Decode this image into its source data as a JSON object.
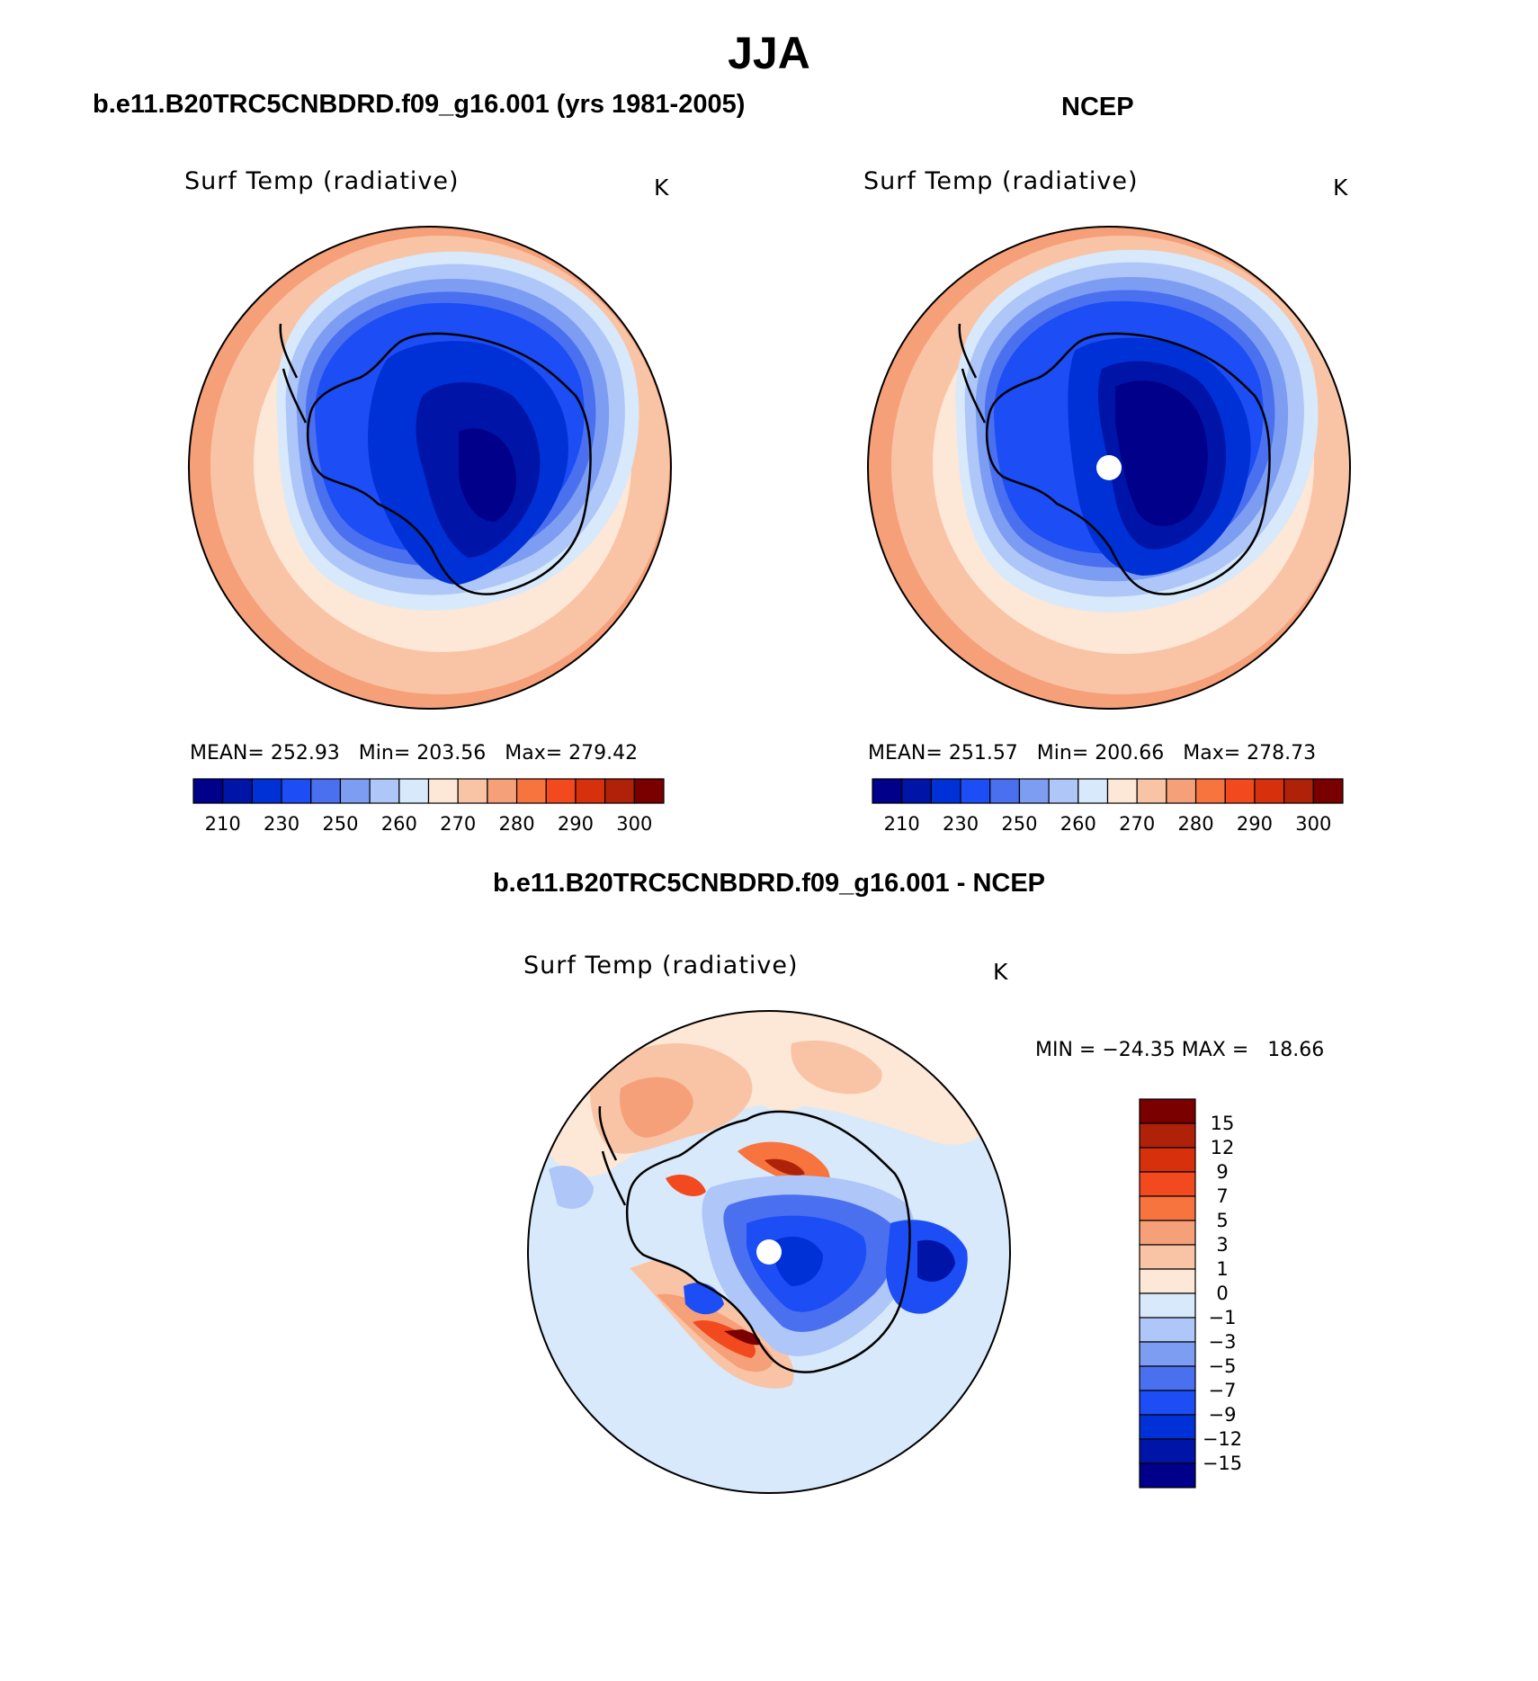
{
  "page_title": "JJA",
  "panels": {
    "left": {
      "title": "b.e11.B20TRC5CNBDRD.f09_g16.001 (yrs 1981-2005)",
      "subtitle": "Surf Temp (radiative)",
      "units": "K",
      "mean_label": "MEAN=",
      "mean": "252.93",
      "min_label": "Min=",
      "min": "203.56",
      "max_label": "Max=",
      "max": "279.42"
    },
    "right": {
      "title": "NCEP",
      "subtitle": "Surf Temp (radiative)",
      "units": "K",
      "mean_label": "MEAN=",
      "mean": "251.57",
      "min_label": "Min=",
      "min": "200.66",
      "max_label": "Max=",
      "max": "278.73"
    },
    "diff": {
      "title": "b.e11.B20TRC5CNBDRD.f09_g16.001 - NCEP",
      "subtitle": "Surf Temp (radiative)",
      "units": "K",
      "minmax_text": "MIN = −24.35 MAX =   18.66"
    }
  },
  "chart_data": [
    {
      "type": "heatmap",
      "projection": "south polar stereographic",
      "title": "Surf Temp (radiative)",
      "units": "K",
      "colorbar": {
        "orientation": "horizontal",
        "tick_labels": [
          "210",
          "230",
          "250",
          "260",
          "270",
          "280",
          "290",
          "300"
        ],
        "colors": [
          "#00008a",
          "#0015a8",
          "#0031d6",
          "#1c4df5",
          "#4a70f0",
          "#7d9df2",
          "#aec6f8",
          "#d8e9fb",
          "#fde7d6",
          "#f9c4a6",
          "#f6a07a",
          "#f7743f",
          "#f24a1e",
          "#d7300c",
          "#b0210a",
          "#7a0000"
        ]
      },
      "stats": {
        "mean": 252.93,
        "min": 203.56,
        "max": 279.42
      }
    },
    {
      "type": "heatmap",
      "projection": "south polar stereographic",
      "title": "Surf Temp (radiative)",
      "units": "K",
      "colorbar": {
        "orientation": "horizontal",
        "tick_labels": [
          "210",
          "230",
          "250",
          "260",
          "270",
          "280",
          "290",
          "300"
        ],
        "colors": [
          "#00008a",
          "#0015a8",
          "#0031d6",
          "#1c4df5",
          "#4a70f0",
          "#7d9df2",
          "#aec6f8",
          "#d8e9fb",
          "#fde7d6",
          "#f9c4a6",
          "#f6a07a",
          "#f7743f",
          "#f24a1e",
          "#d7300c",
          "#b0210a",
          "#7a0000"
        ]
      },
      "stats": {
        "mean": 251.57,
        "min": 200.66,
        "max": 278.73
      }
    },
    {
      "type": "heatmap",
      "projection": "south polar stereographic",
      "title": "Surf Temp (radiative)",
      "units": "K",
      "colorbar": {
        "orientation": "vertical",
        "tick_labels": [
          "15",
          "12",
          "9",
          "7",
          "5",
          "3",
          "1",
          "0",
          "−1",
          "−3",
          "−5",
          "−7",
          "−9",
          "−12",
          "−15"
        ],
        "colors": [
          "#7a0000",
          "#b0210a",
          "#d7300c",
          "#f24a1e",
          "#f7743f",
          "#f6a07a",
          "#f9c4a6",
          "#fde7d6",
          "#d8e9fb",
          "#aec6f8",
          "#7d9df2",
          "#4a70f0",
          "#1c4df5",
          "#0031d6",
          "#0015a8",
          "#00008a"
        ]
      },
      "stats": {
        "min": -24.35,
        "max": 18.66
      }
    }
  ]
}
